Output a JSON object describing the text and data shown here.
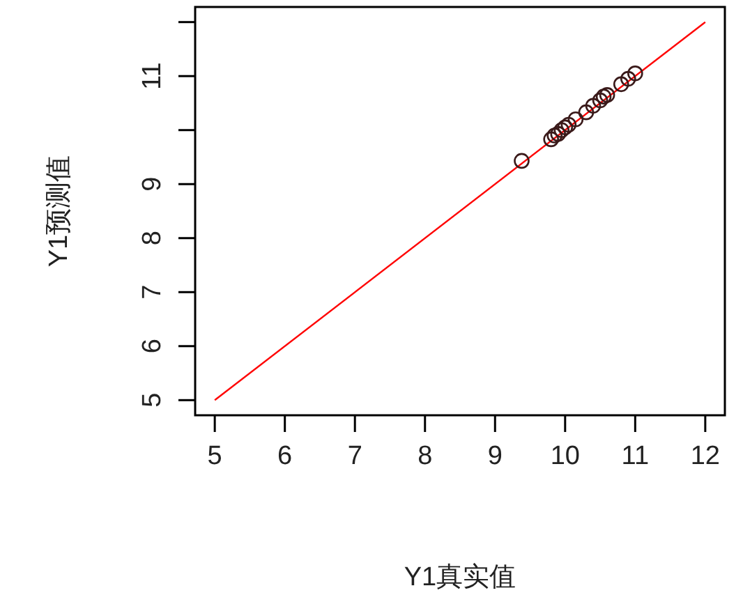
{
  "chart_data": {
    "type": "scatter",
    "xlabel": "Y1真实值",
    "ylabel": "Y1预测值",
    "xlim": [
      4.72,
      12.28
    ],
    "ylim": [
      4.72,
      12.28
    ],
    "xticks": [
      5,
      6,
      7,
      8,
      9,
      10,
      11,
      12
    ],
    "yticks": [
      5,
      6,
      7,
      8,
      9,
      {
        "value": 10,
        "label": null
      },
      11,
      {
        "value": 12,
        "label": null
      }
    ],
    "grid": false,
    "series": [
      {
        "marker": "circle",
        "color": "#3a1a1a",
        "x": [
          9.38,
          9.8,
          9.85,
          9.9,
          9.95,
          10.0,
          10.05,
          10.15,
          10.3,
          10.4,
          10.5,
          10.55,
          10.6,
          10.8,
          10.9,
          11.0
        ],
        "values": [
          9.43,
          9.83,
          9.9,
          9.93,
          10.0,
          10.05,
          10.1,
          10.2,
          10.33,
          10.45,
          10.55,
          10.62,
          10.65,
          10.85,
          10.95,
          11.05
        ]
      },
      {
        "type": "line",
        "color": "#ff0000",
        "x": [
          5,
          12
        ],
        "values": [
          5,
          12
        ]
      }
    ]
  }
}
